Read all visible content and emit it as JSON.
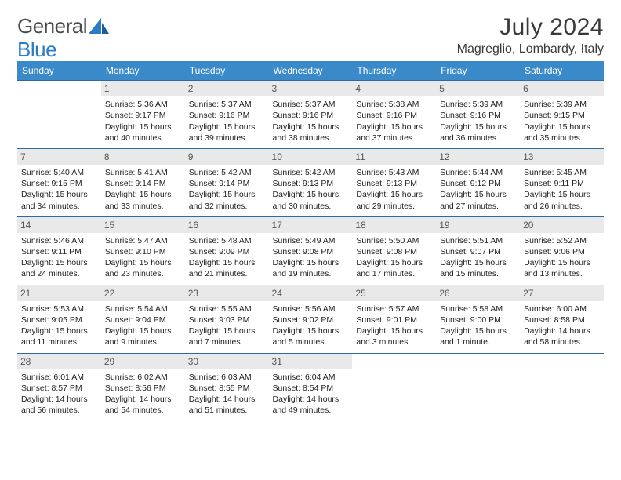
{
  "brand": {
    "part1": "General",
    "part2": "Blue"
  },
  "title": "July 2024",
  "location": "Magreglio, Lombardy, Italy",
  "colors": {
    "header_bg": "#3a8ac9",
    "row_border": "#2b6aa3",
    "daynum_bg": "#e9e9e9",
    "text": "#222222"
  },
  "weekdays": [
    "Sunday",
    "Monday",
    "Tuesday",
    "Wednesday",
    "Thursday",
    "Friday",
    "Saturday"
  ],
  "weeks": [
    [
      null,
      {
        "n": "1",
        "sr": "5:36 AM",
        "ss": "9:17 PM",
        "dl": "15 hours and 40 minutes."
      },
      {
        "n": "2",
        "sr": "5:37 AM",
        "ss": "9:16 PM",
        "dl": "15 hours and 39 minutes."
      },
      {
        "n": "3",
        "sr": "5:37 AM",
        "ss": "9:16 PM",
        "dl": "15 hours and 38 minutes."
      },
      {
        "n": "4",
        "sr": "5:38 AM",
        "ss": "9:16 PM",
        "dl": "15 hours and 37 minutes."
      },
      {
        "n": "5",
        "sr": "5:39 AM",
        "ss": "9:16 PM",
        "dl": "15 hours and 36 minutes."
      },
      {
        "n": "6",
        "sr": "5:39 AM",
        "ss": "9:15 PM",
        "dl": "15 hours and 35 minutes."
      }
    ],
    [
      {
        "n": "7",
        "sr": "5:40 AM",
        "ss": "9:15 PM",
        "dl": "15 hours and 34 minutes."
      },
      {
        "n": "8",
        "sr": "5:41 AM",
        "ss": "9:14 PM",
        "dl": "15 hours and 33 minutes."
      },
      {
        "n": "9",
        "sr": "5:42 AM",
        "ss": "9:14 PM",
        "dl": "15 hours and 32 minutes."
      },
      {
        "n": "10",
        "sr": "5:42 AM",
        "ss": "9:13 PM",
        "dl": "15 hours and 30 minutes."
      },
      {
        "n": "11",
        "sr": "5:43 AM",
        "ss": "9:13 PM",
        "dl": "15 hours and 29 minutes."
      },
      {
        "n": "12",
        "sr": "5:44 AM",
        "ss": "9:12 PM",
        "dl": "15 hours and 27 minutes."
      },
      {
        "n": "13",
        "sr": "5:45 AM",
        "ss": "9:11 PM",
        "dl": "15 hours and 26 minutes."
      }
    ],
    [
      {
        "n": "14",
        "sr": "5:46 AM",
        "ss": "9:11 PM",
        "dl": "15 hours and 24 minutes."
      },
      {
        "n": "15",
        "sr": "5:47 AM",
        "ss": "9:10 PM",
        "dl": "15 hours and 23 minutes."
      },
      {
        "n": "16",
        "sr": "5:48 AM",
        "ss": "9:09 PM",
        "dl": "15 hours and 21 minutes."
      },
      {
        "n": "17",
        "sr": "5:49 AM",
        "ss": "9:08 PM",
        "dl": "15 hours and 19 minutes."
      },
      {
        "n": "18",
        "sr": "5:50 AM",
        "ss": "9:08 PM",
        "dl": "15 hours and 17 minutes."
      },
      {
        "n": "19",
        "sr": "5:51 AM",
        "ss": "9:07 PM",
        "dl": "15 hours and 15 minutes."
      },
      {
        "n": "20",
        "sr": "5:52 AM",
        "ss": "9:06 PM",
        "dl": "15 hours and 13 minutes."
      }
    ],
    [
      {
        "n": "21",
        "sr": "5:53 AM",
        "ss": "9:05 PM",
        "dl": "15 hours and 11 minutes."
      },
      {
        "n": "22",
        "sr": "5:54 AM",
        "ss": "9:04 PM",
        "dl": "15 hours and 9 minutes."
      },
      {
        "n": "23",
        "sr": "5:55 AM",
        "ss": "9:03 PM",
        "dl": "15 hours and 7 minutes."
      },
      {
        "n": "24",
        "sr": "5:56 AM",
        "ss": "9:02 PM",
        "dl": "15 hours and 5 minutes."
      },
      {
        "n": "25",
        "sr": "5:57 AM",
        "ss": "9:01 PM",
        "dl": "15 hours and 3 minutes."
      },
      {
        "n": "26",
        "sr": "5:58 AM",
        "ss": "9:00 PM",
        "dl": "15 hours and 1 minute."
      },
      {
        "n": "27",
        "sr": "6:00 AM",
        "ss": "8:58 PM",
        "dl": "14 hours and 58 minutes."
      }
    ],
    [
      {
        "n": "28",
        "sr": "6:01 AM",
        "ss": "8:57 PM",
        "dl": "14 hours and 56 minutes."
      },
      {
        "n": "29",
        "sr": "6:02 AM",
        "ss": "8:56 PM",
        "dl": "14 hours and 54 minutes."
      },
      {
        "n": "30",
        "sr": "6:03 AM",
        "ss": "8:55 PM",
        "dl": "14 hours and 51 minutes."
      },
      {
        "n": "31",
        "sr": "6:04 AM",
        "ss": "8:54 PM",
        "dl": "14 hours and 49 minutes."
      },
      null,
      null,
      null
    ]
  ],
  "labels": {
    "sunrise": "Sunrise:",
    "sunset": "Sunset:",
    "daylight": "Daylight:"
  }
}
